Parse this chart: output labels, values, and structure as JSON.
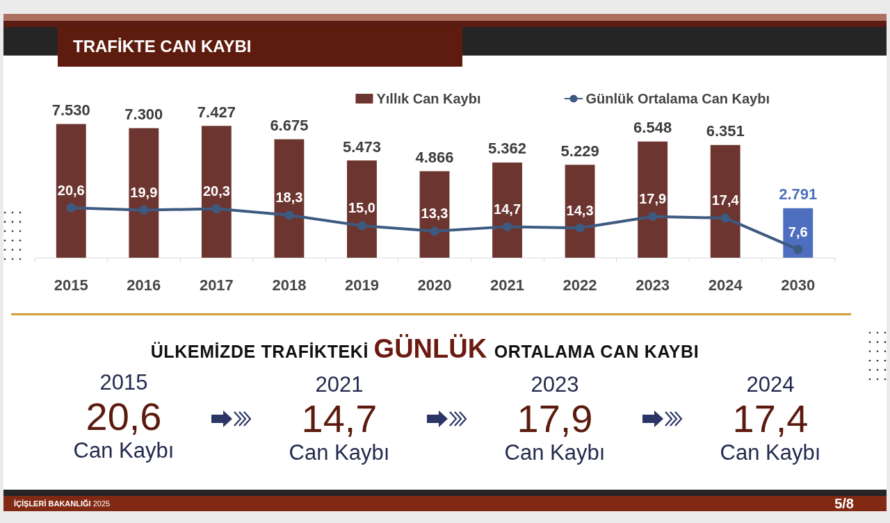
{
  "chart_data": [
    {
      "type": "bar",
      "title": "TRAFİKTE CAN KAYBI",
      "categories": [
        "2015",
        "2016",
        "2017",
        "2018",
        "2019",
        "2020",
        "2021",
        "2022",
        "2023",
        "2024",
        "2030"
      ],
      "series": [
        {
          "name": "Yıllık Can Kaybı",
          "type": "bar",
          "color": "#6d3530",
          "colors": [
            "#6d3530",
            "#6d3530",
            "#6d3530",
            "#6d3530",
            "#6d3530",
            "#6d3530",
            "#6d3530",
            "#6d3530",
            "#6d3530",
            "#6d3530",
            "#4e6fbf"
          ],
          "values": [
            7530,
            7300,
            7427,
            6675,
            5473,
            4866,
            5362,
            5229,
            6548,
            6351,
            2791
          ],
          "value_labels": [
            "7.530",
            "7.300",
            "7.427",
            "6.675",
            "5.473",
            "4.866",
            "5.362",
            "5.229",
            "6.548",
            "6.351",
            "2.791"
          ]
        },
        {
          "name": "Günlük Ortalama Can Kaybı",
          "type": "line",
          "axis": "y2",
          "color": "#3d5a80",
          "values": [
            20.6,
            19.9,
            20.3,
            18.3,
            15.0,
            13.3,
            14.7,
            14.3,
            17.9,
            17.4,
            7.6
          ],
          "value_labels": [
            "20,6",
            "19,9",
            "20,3",
            "18,3",
            "15,0",
            "13,3",
            "14,7",
            "14,3",
            "17,9",
            "17,4",
            "7,6"
          ]
        }
      ],
      "tick_labels": "x",
      "legend": "top right",
      "marker": "circle",
      "line_style": "solid",
      "annotations": [
        "İÇİŞLERİ BAKANLIĞI 2025",
        "5/8"
      ]
    },
    {
      "type": "other",
      "title": "ÜLKEMİZDE TRAFİKTEKİ GÜNLÜK ORTALAMA CAN KAYBI",
      "categories": [
        "2015",
        "2021",
        "2023",
        "2024"
      ],
      "annotations": [
        "20,6",
        "Can Kaybı",
        "14,7",
        "Can Kaybı",
        "17,9",
        "Can Kaybı",
        "17,4",
        "Can Kaybı"
      ]
    }
  ]
}
